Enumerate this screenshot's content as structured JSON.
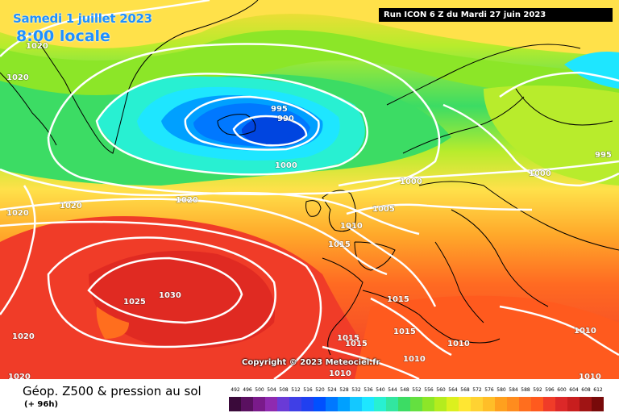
{
  "header": {
    "date": "Samedi 1 juillet 2023",
    "time": "8:00 locale",
    "run": "Run ICON 6 Z du Mardi 27 juin 2023"
  },
  "map": {
    "copyright": "Copyright © 2023 Meteociel.fr",
    "lows": [
      {
        "label": "995",
        "value": 995
      },
      {
        "label": "990",
        "value": 990
      },
      {
        "label": "995",
        "value": 995
      }
    ],
    "isobar_labels": [
      "1020",
      "1020",
      "1020",
      "1020",
      "1020",
      "1020",
      "1000",
      "1000",
      "1000",
      "1005",
      "1010",
      "1015",
      "1025",
      "1030",
      "1020",
      "1015",
      "1015",
      "1015",
      "1015",
      "1010",
      "1010",
      "1010",
      "1010",
      "1010"
    ],
    "colors": {
      "low_core": "#0045e0",
      "low_mid": "#2a8cff",
      "cyan": "#1ee6ff",
      "green": "#3cdc64",
      "yellow": "#ffe14a",
      "orange": "#ff8c1e",
      "red": "#f03c28",
      "isobar": "#ffffff",
      "coast": "#000000"
    }
  },
  "footer": {
    "title": "Géop. Z500 & pression au sol",
    "subtitle": "(+ 96h)",
    "scale_labels": [
      "492",
      "496",
      "500",
      "504",
      "508",
      "512",
      "516",
      "520",
      "524",
      "528",
      "532",
      "536",
      "540",
      "544",
      "548",
      "552",
      "556",
      "560",
      "564",
      "568",
      "572",
      "576",
      "580",
      "584",
      "588",
      "592",
      "596",
      "600",
      "604",
      "608",
      "612"
    ],
    "scale_colors": [
      "#3a0a3a",
      "#5a1060",
      "#7a1a8a",
      "#8f2ab0",
      "#6a3ad6",
      "#3f3fe6",
      "#2040f0",
      "#0050ff",
      "#0078ff",
      "#00a0ff",
      "#14c8ff",
      "#1ee6ff",
      "#28f0d2",
      "#32e6a0",
      "#3cdc64",
      "#64e040",
      "#8ce628",
      "#b4ec1e",
      "#dcf01e",
      "#ffe632",
      "#ffd232",
      "#ffbe28",
      "#ffa01e",
      "#ff8c1e",
      "#ff6e1e",
      "#ff5a1e",
      "#f03c28",
      "#dc2828",
      "#c81e1e",
      "#a01414",
      "#780a0a"
    ]
  }
}
